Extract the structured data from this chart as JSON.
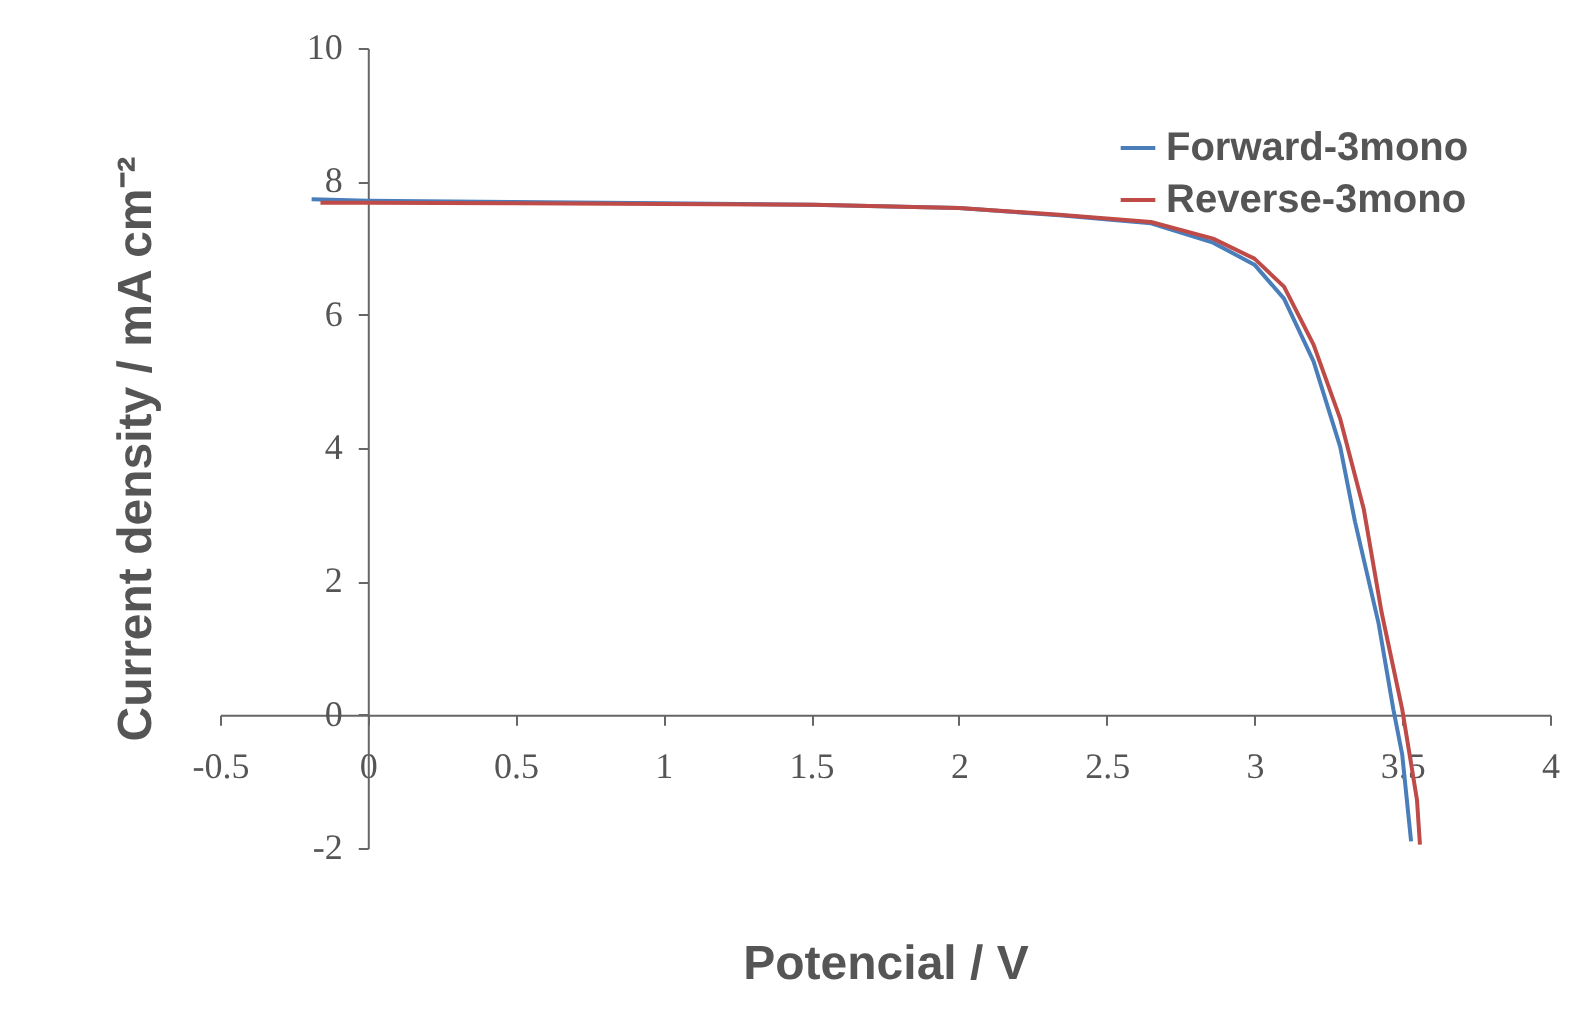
{
  "chart_data": {
    "type": "line",
    "xlabel": "Potencial / V",
    "ylabel": "Current density / mA cm⁻²",
    "xlim": [
      -0.5,
      4
    ],
    "ylim": [
      -2,
      10
    ],
    "xticks": [
      -0.5,
      0,
      0.5,
      1,
      1.5,
      2,
      2.5,
      3,
      3.5,
      4
    ],
    "yticks": [
      -2,
      0,
      2,
      4,
      6,
      8,
      10
    ],
    "grid": false,
    "legend": "top right",
    "marker": "none",
    "line_style": "solid",
    "series": [
      {
        "name": "Forward-3mono",
        "color": "#4a7ebb",
        "x": [
          -0.19,
          0,
          0.5,
          1,
          1.5,
          2,
          2.34,
          2.65,
          2.86,
          3.0,
          3.1,
          3.2,
          3.29,
          3.34,
          3.42,
          3.47,
          3.5,
          3.53
        ],
        "values": [
          7.73,
          7.71,
          7.69,
          7.67,
          7.65,
          7.6,
          7.49,
          7.37,
          7.08,
          6.75,
          6.24,
          5.3,
          4.02,
          2.9,
          1.37,
          0.08,
          -0.6,
          -1.9
        ]
      },
      {
        "name": "Reverse-3mono",
        "color": "#be4b48",
        "x": [
          -0.16,
          0,
          0.5,
          1,
          1.51,
          2,
          2.34,
          2.65,
          2.86,
          3.0,
          3.1,
          3.2,
          3.29,
          3.37,
          3.43,
          3.5,
          3.55,
          3.56
        ],
        "values": [
          7.68,
          7.68,
          7.67,
          7.66,
          7.65,
          7.6,
          7.5,
          7.39,
          7.14,
          6.84,
          6.42,
          5.55,
          4.44,
          3.08,
          1.54,
          0.08,
          -1.28,
          -1.95
        ]
      }
    ]
  }
}
